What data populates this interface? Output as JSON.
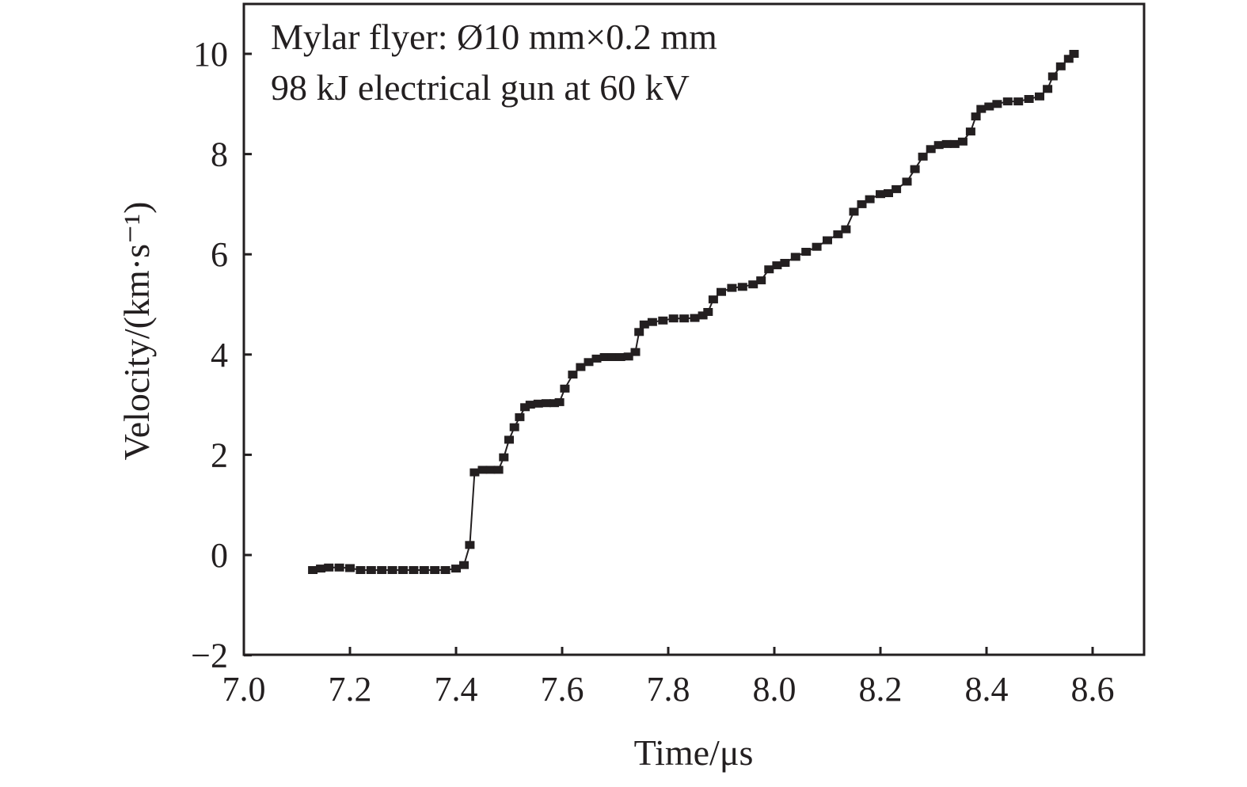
{
  "chart_data": {
    "type": "scatter",
    "title": "",
    "xlabel": "Time/μs",
    "ylabel": "Velocity/(km·s⁻¹)",
    "xlim": [
      7.0,
      8.7
    ],
    "ylim": [
      -2,
      11
    ],
    "xticks": [
      7.0,
      7.2,
      7.4,
      7.6,
      7.8,
      8.0,
      8.2,
      8.4,
      8.6
    ],
    "xtick_labels": [
      "7.0",
      "7.2",
      "7.4",
      "7.6",
      "7.8",
      "8.0",
      "8.2",
      "8.4",
      "8.6"
    ],
    "yticks": [
      -2,
      0,
      2,
      4,
      6,
      8,
      10
    ],
    "ytick_labels": [
      "−2",
      "0",
      "2",
      "4",
      "6",
      "8",
      "10"
    ],
    "grid": false,
    "annotations": [
      "Mylar flyer: Ø10 mm×0.2 mm",
      "98 kJ electrical gun at 60 kV"
    ],
    "series": [
      {
        "color": "#231f20",
        "points": [
          [
            7.13,
            -0.3
          ],
          [
            7.145,
            -0.27
          ],
          [
            7.16,
            -0.25
          ],
          [
            7.18,
            -0.25
          ],
          [
            7.2,
            -0.26
          ],
          [
            7.22,
            -0.3
          ],
          [
            7.24,
            -0.3
          ],
          [
            7.26,
            -0.3
          ],
          [
            7.28,
            -0.3
          ],
          [
            7.3,
            -0.3
          ],
          [
            7.32,
            -0.3
          ],
          [
            7.34,
            -0.3
          ],
          [
            7.36,
            -0.3
          ],
          [
            7.38,
            -0.3
          ],
          [
            7.4,
            -0.27
          ],
          [
            7.415,
            -0.2
          ],
          [
            7.426,
            0.2
          ],
          [
            7.435,
            1.65
          ],
          [
            7.45,
            1.7
          ],
          [
            7.465,
            1.7
          ],
          [
            7.48,
            1.7
          ],
          [
            7.49,
            1.95
          ],
          [
            7.5,
            2.3
          ],
          [
            7.51,
            2.55
          ],
          [
            7.52,
            2.75
          ],
          [
            7.53,
            2.95
          ],
          [
            7.54,
            3.0
          ],
          [
            7.555,
            3.02
          ],
          [
            7.57,
            3.03
          ],
          [
            7.585,
            3.03
          ],
          [
            7.595,
            3.05
          ],
          [
            7.605,
            3.32
          ],
          [
            7.62,
            3.6
          ],
          [
            7.635,
            3.75
          ],
          [
            7.65,
            3.85
          ],
          [
            7.665,
            3.92
          ],
          [
            7.68,
            3.95
          ],
          [
            7.695,
            3.95
          ],
          [
            7.71,
            3.95
          ],
          [
            7.725,
            3.96
          ],
          [
            7.738,
            4.05
          ],
          [
            7.745,
            4.45
          ],
          [
            7.755,
            4.6
          ],
          [
            7.77,
            4.65
          ],
          [
            7.79,
            4.68
          ],
          [
            7.81,
            4.72
          ],
          [
            7.83,
            4.72
          ],
          [
            7.85,
            4.73
          ],
          [
            7.865,
            4.78
          ],
          [
            7.875,
            4.85
          ],
          [
            7.885,
            5.1
          ],
          [
            7.9,
            5.25
          ],
          [
            7.92,
            5.33
          ],
          [
            7.94,
            5.35
          ],
          [
            7.96,
            5.4
          ],
          [
            7.975,
            5.48
          ],
          [
            7.99,
            5.7
          ],
          [
            8.005,
            5.78
          ],
          [
            8.02,
            5.83
          ],
          [
            8.04,
            5.95
          ],
          [
            8.06,
            6.05
          ],
          [
            8.08,
            6.15
          ],
          [
            8.1,
            6.28
          ],
          [
            8.12,
            6.4
          ],
          [
            8.135,
            6.5
          ],
          [
            8.15,
            6.85
          ],
          [
            8.165,
            7.0
          ],
          [
            8.18,
            7.1
          ],
          [
            8.2,
            7.2
          ],
          [
            8.215,
            7.22
          ],
          [
            8.23,
            7.3
          ],
          [
            8.25,
            7.45
          ],
          [
            8.265,
            7.7
          ],
          [
            8.28,
            7.95
          ],
          [
            8.295,
            8.1
          ],
          [
            8.31,
            8.18
          ],
          [
            8.325,
            8.2
          ],
          [
            8.34,
            8.2
          ],
          [
            8.355,
            8.25
          ],
          [
            8.37,
            8.45
          ],
          [
            8.38,
            8.75
          ],
          [
            8.39,
            8.9
          ],
          [
            8.405,
            8.95
          ],
          [
            8.42,
            9.0
          ],
          [
            8.44,
            9.05
          ],
          [
            8.46,
            9.05
          ],
          [
            8.48,
            9.1
          ],
          [
            8.5,
            9.15
          ],
          [
            8.515,
            9.3
          ],
          [
            8.525,
            9.55
          ],
          [
            8.54,
            9.75
          ],
          [
            8.555,
            9.9
          ],
          [
            8.565,
            10.0
          ]
        ]
      }
    ]
  }
}
